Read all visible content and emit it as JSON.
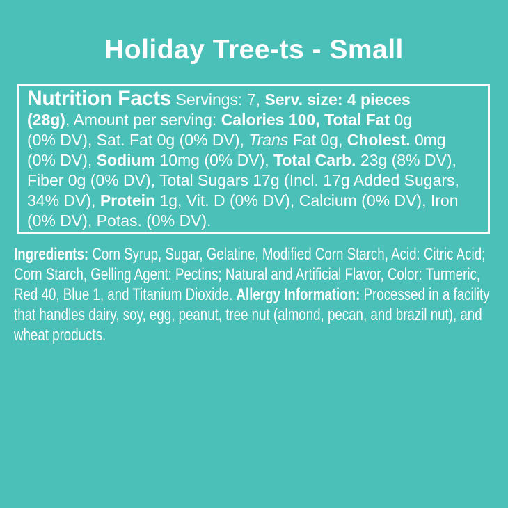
{
  "page": {
    "background_color": "#4BC0B8",
    "text_color": "#FFFFFF",
    "box_border_color": "#FFFFFF"
  },
  "title": "Holiday Tree-ts - Small",
  "nutrition_facts": {
    "heading": "Nutrition Facts",
    "servings": "7",
    "serving_size": "4 pieces (28g)",
    "calories": "100",
    "nutrients": [
      {
        "name": "Total Fat",
        "value": "0g",
        "dv": "0% DV"
      },
      {
        "name": "Sat. Fat",
        "value": "0g",
        "dv": "0% DV"
      },
      {
        "name": "Trans Fat",
        "value": "0g",
        "dv": ""
      },
      {
        "name": "Cholest.",
        "value": "0mg",
        "dv": "0% DV"
      },
      {
        "name": "Sodium",
        "value": "10mg",
        "dv": "0% DV"
      },
      {
        "name": "Total Carb.",
        "value": "23g",
        "dv": "8% DV"
      },
      {
        "name": "Fiber",
        "value": "0g",
        "dv": "0% DV"
      },
      {
        "name": "Total Sugars",
        "value": "17g",
        "dv": ""
      },
      {
        "name": "Added Sugars",
        "value": "Incl. 17g",
        "dv": "34% DV"
      },
      {
        "name": "Protein",
        "value": "1g",
        "dv": ""
      },
      {
        "name": "Vit. D",
        "value": "",
        "dv": "0% DV"
      },
      {
        "name": "Calcium",
        "value": "",
        "dv": "0% DV"
      },
      {
        "name": "Iron",
        "value": "",
        "dv": "0% DV"
      },
      {
        "name": "Potas.",
        "value": "",
        "dv": "0% DV"
      }
    ],
    "segments": [
      {
        "t": "Nutrition Facts",
        "s": "h"
      },
      {
        "t": " Servings: 7, ",
        "s": "r"
      },
      {
        "t": "Serv. size: 4 pieces\n(28g)",
        "s": "b"
      },
      {
        "t": ", Amount per serving: ",
        "s": "r"
      },
      {
        "t": "Calories 100, Total Fat",
        "s": "b"
      },
      {
        "t": " 0g\n(0% DV), Sat. Fat 0g (0% DV), ",
        "s": "r"
      },
      {
        "t": "Trans",
        "s": "i"
      },
      {
        "t": " Fat 0g, ",
        "s": "r"
      },
      {
        "t": "Cholest.",
        "s": "b"
      },
      {
        "t": " 0mg\n(0% DV), ",
        "s": "r"
      },
      {
        "t": "Sodium",
        "s": "b"
      },
      {
        "t": " 10mg (0% DV), ",
        "s": "r"
      },
      {
        "t": "Total Carb.",
        "s": "b"
      },
      {
        "t": " 23g (8% DV),\nFiber 0g (0% DV), Total Sugars 17g (Incl. 17g Added Sugars,\n34% DV), ",
        "s": "r"
      },
      {
        "t": "Protein",
        "s": "b"
      },
      {
        "t": " 1g, Vit. D (0% DV), Calcium (0% DV), Iron\n(0% DV), Potas. (0% DV).",
        "s": "r"
      }
    ]
  },
  "ingredients": {
    "label": "Ingredients:",
    "allergy_label": "Allergy Information:",
    "segments": [
      {
        "t": "Ingredients:",
        "s": "b"
      },
      {
        "t": " Corn Syrup, Sugar, Gelatine, Modified Corn Starch, Acid: Citric Acid;\nCorn Starch, Gelling Agent: Pectins; Natural and Artificial Flavor, Color: Turmeric,\nRed 40, Blue 1, and Titanium Dioxide. ",
        "s": "r"
      },
      {
        "t": "Allergy Information:",
        "s": "b"
      },
      {
        "t": " Processed in a facility\nthat handles dairy, soy, egg, peanut, tree nut (almond, pecan, and brazil nut), and\nwheat products.",
        "s": "r"
      }
    ]
  }
}
